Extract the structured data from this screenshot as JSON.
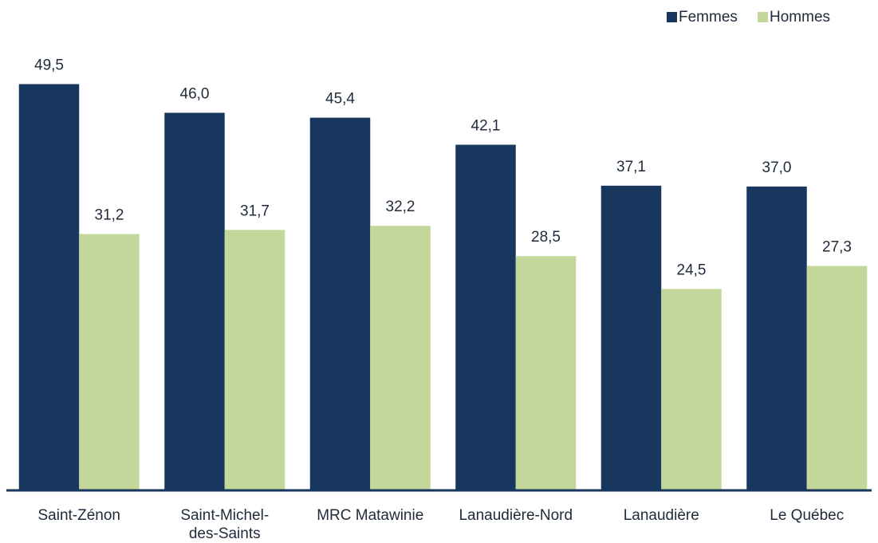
{
  "chart_data": {
    "type": "bar",
    "categories": [
      "Saint-Zénon",
      "Saint-Michel-des-Saints",
      "MRC Matawinie",
      "Lanaudière-Nord",
      "Lanaudière",
      "Le Québec"
    ],
    "series": [
      {
        "name": "Femmes",
        "color": "#17375e",
        "values": [
          49.5,
          46.0,
          45.4,
          42.1,
          37.1,
          37.0
        ],
        "value_labels": [
          "49,5",
          "46,0",
          "45,4",
          "42,1",
          "37,1",
          "37,0"
        ]
      },
      {
        "name": "Hommes",
        "color": "#c4d79b",
        "values": [
          31.2,
          31.7,
          32.2,
          28.5,
          24.5,
          27.3
        ],
        "value_labels": [
          "31,2",
          "31,7",
          "32,2",
          "28,5",
          "24,5",
          "27,3"
        ]
      }
    ],
    "ylim": [
      0,
      55
    ],
    "legend": "top-right"
  }
}
